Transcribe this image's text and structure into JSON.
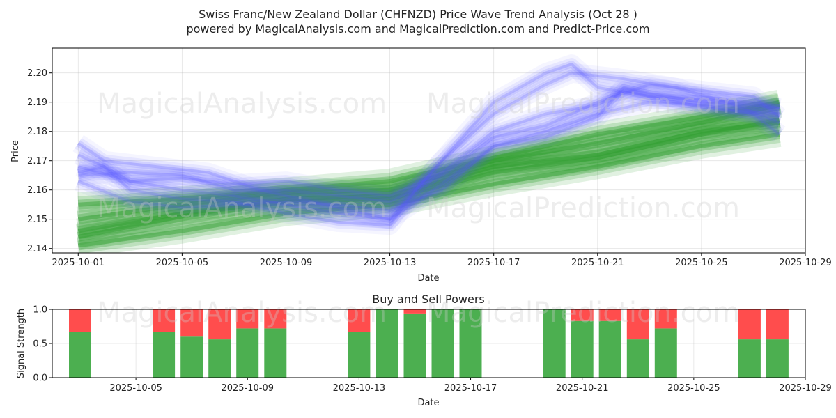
{
  "title_line1": "Swiss Franc/New Zealand Dollar (CHFNZD) Price Wave Trend Analysis (Oct 28 )",
  "title_line2": "powered by MagicalAnalysis.com and MagicalPrediction.com and Predict-Price.com",
  "watermarks": [
    "MagicalAnalysis.com",
    "MagicalPrediction.com"
  ],
  "colors": {
    "buy": "#4caf50",
    "sell": "#ff4d4d",
    "blue_band": "#5555ff",
    "green_band": "#2e9e2e"
  },
  "chart_data": [
    {
      "type": "area",
      "xlabel": "Date",
      "ylabel": "Price",
      "x_ticks": [
        "2025-10-01",
        "2025-10-05",
        "2025-10-09",
        "2025-10-13",
        "2025-10-17",
        "2025-10-21",
        "2025-10-25",
        "2025-10-29"
      ],
      "y_ticks": [
        "2.14",
        "2.15",
        "2.16",
        "2.17",
        "2.18",
        "2.19",
        "2.20"
      ],
      "xlim": [
        "2025-09-30",
        "2025-10-29"
      ],
      "ylim": [
        2.1385,
        2.2085
      ],
      "grid": true,
      "series": [
        {
          "kind": "blue",
          "points": [
            [
              "2025-10-01",
              2.166
            ],
            [
              "2025-10-02",
              2.168
            ],
            [
              "2025-10-03",
              2.163
            ],
            [
              "2025-10-05",
              2.16
            ],
            [
              "2025-10-07",
              2.158
            ],
            [
              "2025-10-09",
              2.155
            ],
            [
              "2025-10-11",
              2.152
            ],
            [
              "2025-10-13",
              2.15
            ],
            [
              "2025-10-14",
              2.156
            ],
            [
              "2025-10-15",
              2.162
            ],
            [
              "2025-10-17",
              2.175
            ],
            [
              "2025-10-19",
              2.178
            ],
            [
              "2025-10-21",
              2.185
            ],
            [
              "2025-10-22",
              2.195
            ],
            [
              "2025-10-23",
              2.193
            ],
            [
              "2025-10-25",
              2.19
            ],
            [
              "2025-10-27",
              2.189
            ],
            [
              "2025-10-28",
              2.188
            ]
          ]
        },
        {
          "kind": "blue",
          "points": [
            [
              "2025-10-01",
              2.172
            ],
            [
              "2025-10-02",
              2.168
            ],
            [
              "2025-10-03",
              2.16
            ],
            [
              "2025-10-05",
              2.157
            ],
            [
              "2025-10-07",
              2.156
            ],
            [
              "2025-10-09",
              2.152
            ],
            [
              "2025-10-11",
              2.149
            ],
            [
              "2025-10-13",
              2.148
            ],
            [
              "2025-10-14",
              2.16
            ],
            [
              "2025-10-16",
              2.18
            ],
            [
              "2025-10-17",
              2.19
            ],
            [
              "2025-10-19",
              2.2
            ],
            [
              "2025-10-20",
              2.203
            ],
            [
              "2025-10-21",
              2.195
            ],
            [
              "2025-10-23",
              2.192
            ],
            [
              "2025-10-25",
              2.191
            ],
            [
              "2025-10-27",
              2.19
            ],
            [
              "2025-10-28",
              2.188
            ]
          ]
        },
        {
          "kind": "blue",
          "points": [
            [
              "2025-10-01",
              2.165
            ],
            [
              "2025-10-03",
              2.166
            ],
            [
              "2025-10-05",
              2.165
            ],
            [
              "2025-10-07",
              2.16
            ],
            [
              "2025-10-09",
              2.16
            ],
            [
              "2025-10-11",
              2.158
            ],
            [
              "2025-10-13",
              2.156
            ],
            [
              "2025-10-15",
              2.165
            ],
            [
              "2025-10-17",
              2.178
            ],
            [
              "2025-10-19",
              2.182
            ],
            [
              "2025-10-21",
              2.19
            ],
            [
              "2025-10-23",
              2.196
            ],
            [
              "2025-10-25",
              2.194
            ],
            [
              "2025-10-27",
              2.192
            ],
            [
              "2025-10-28",
              2.185
            ]
          ]
        },
        {
          "kind": "blue",
          "points": [
            [
              "2025-10-01",
              2.176
            ],
            [
              "2025-10-02",
              2.17
            ],
            [
              "2025-10-04",
              2.168
            ],
            [
              "2025-10-06",
              2.166
            ],
            [
              "2025-10-08",
              2.16
            ],
            [
              "2025-10-10",
              2.156
            ],
            [
              "2025-10-12",
              2.152
            ],
            [
              "2025-10-13",
              2.15
            ],
            [
              "2025-10-15",
              2.17
            ],
            [
              "2025-10-17",
              2.186
            ],
            [
              "2025-10-19",
              2.196
            ],
            [
              "2025-10-20",
              2.2
            ],
            [
              "2025-10-22",
              2.198
            ],
            [
              "2025-10-24",
              2.195
            ],
            [
              "2025-10-26",
              2.19
            ],
            [
              "2025-10-28",
              2.183
            ]
          ]
        },
        {
          "kind": "blue",
          "points": [
            [
              "2025-10-01",
              2.163
            ],
            [
              "2025-10-03",
              2.156
            ],
            [
              "2025-10-05",
              2.154
            ],
            [
              "2025-10-07",
              2.155
            ],
            [
              "2025-10-09",
              2.156
            ],
            [
              "2025-10-11",
              2.155
            ],
            [
              "2025-10-13",
              2.153
            ],
            [
              "2025-10-15",
              2.16
            ],
            [
              "2025-10-17",
              2.175
            ],
            [
              "2025-10-19",
              2.18
            ],
            [
              "2025-10-21",
              2.186
            ],
            [
              "2025-10-23",
              2.19
            ],
            [
              "2025-10-25",
              2.189
            ],
            [
              "2025-10-27",
              2.186
            ],
            [
              "2025-10-28",
              2.179
            ]
          ]
        },
        {
          "kind": "blue",
          "points": [
            [
              "2025-10-01",
              2.168
            ],
            [
              "2025-10-03",
              2.163
            ],
            [
              "2025-10-05",
              2.164
            ],
            [
              "2025-10-07",
              2.162
            ],
            [
              "2025-10-09",
              2.163
            ],
            [
              "2025-10-11",
              2.16
            ],
            [
              "2025-10-13",
              2.158
            ],
            [
              "2025-10-15",
              2.166
            ],
            [
              "2025-10-17",
              2.18
            ],
            [
              "2025-10-19",
              2.186
            ],
            [
              "2025-10-21",
              2.189
            ],
            [
              "2025-10-22",
              2.194
            ],
            [
              "2025-10-24",
              2.19
            ],
            [
              "2025-10-26",
              2.187
            ],
            [
              "2025-10-28",
              2.186
            ]
          ]
        },
        {
          "kind": "green",
          "points": [
            [
              "2025-10-01",
              2.15
            ],
            [
              "2025-10-05",
              2.155
            ],
            [
              "2025-10-09",
              2.159
            ],
            [
              "2025-10-13",
              2.16
            ],
            [
              "2025-10-17",
              2.17
            ],
            [
              "2025-10-21",
              2.176
            ],
            [
              "2025-10-25",
              2.183
            ],
            [
              "2025-10-28",
              2.189
            ]
          ]
        },
        {
          "kind": "green",
          "points": [
            [
              "2025-10-01",
              2.144
            ],
            [
              "2025-10-05",
              2.151
            ],
            [
              "2025-10-09",
              2.157
            ],
            [
              "2025-10-13",
              2.158
            ],
            [
              "2025-10-17",
              2.168
            ],
            [
              "2025-10-21",
              2.172
            ],
            [
              "2025-10-25",
              2.18
            ],
            [
              "2025-10-28",
              2.183
            ]
          ]
        },
        {
          "kind": "green",
          "points": [
            [
              "2025-10-01",
              2.155
            ],
            [
              "2025-10-05",
              2.157
            ],
            [
              "2025-10-09",
              2.16
            ],
            [
              "2025-10-13",
              2.163
            ],
            [
              "2025-10-17",
              2.171
            ],
            [
              "2025-10-21",
              2.179
            ],
            [
              "2025-10-25",
              2.185
            ],
            [
              "2025-10-28",
              2.19
            ]
          ]
        },
        {
          "kind": "green",
          "points": [
            [
              "2025-10-01",
              2.141
            ],
            [
              "2025-10-05",
              2.146
            ],
            [
              "2025-10-09",
              2.152
            ],
            [
              "2025-10-13",
              2.155
            ],
            [
              "2025-10-17",
              2.162
            ],
            [
              "2025-10-21",
              2.168
            ],
            [
              "2025-10-25",
              2.175
            ],
            [
              "2025-10-28",
              2.179
            ]
          ]
        },
        {
          "kind": "green",
          "points": [
            [
              "2025-10-01",
              2.146
            ],
            [
              "2025-10-05",
              2.152
            ],
            [
              "2025-10-09",
              2.156
            ],
            [
              "2025-10-13",
              2.157
            ],
            [
              "2025-10-17",
              2.166
            ],
            [
              "2025-10-21",
              2.171
            ],
            [
              "2025-10-25",
              2.179
            ],
            [
              "2025-10-28",
              2.184
            ]
          ]
        }
      ]
    },
    {
      "type": "bar",
      "title": "Buy and Sell Powers",
      "xlabel": "Date",
      "ylabel": "Signal Strength",
      "x_ticks": [
        "2025-10-05",
        "2025-10-09",
        "2025-10-13",
        "2025-10-17",
        "2025-10-21",
        "2025-10-25",
        "2025-10-29"
      ],
      "y_ticks": [
        "0.0",
        "0.5",
        "1.0"
      ],
      "xlim": [
        "2025-10-02",
        "2025-10-29"
      ],
      "ylim": [
        0,
        1
      ],
      "categories": [
        "2025-10-03",
        "2025-10-06",
        "2025-10-07",
        "2025-10-08",
        "2025-10-09",
        "2025-10-10",
        "2025-10-13",
        "2025-10-14",
        "2025-10-15",
        "2025-10-16",
        "2025-10-17",
        "2025-10-20",
        "2025-10-21",
        "2025-10-22",
        "2025-10-23",
        "2025-10-24",
        "2025-10-27",
        "2025-10-28"
      ],
      "series": [
        {
          "kind": "buy",
          "values": [
            0.67,
            0.67,
            0.6,
            0.56,
            0.72,
            0.72,
            0.67,
            1.0,
            0.94,
            1.0,
            1.0,
            1.0,
            0.83,
            0.83,
            0.56,
            0.72,
            0.56,
            0.56
          ]
        },
        {
          "kind": "sell",
          "values": [
            0.33,
            0.33,
            0.4,
            0.44,
            0.28,
            0.28,
            0.33,
            0.0,
            0.06,
            0.0,
            0.0,
            0.0,
            0.17,
            0.17,
            0.44,
            0.28,
            0.44,
            0.44
          ]
        }
      ]
    }
  ]
}
